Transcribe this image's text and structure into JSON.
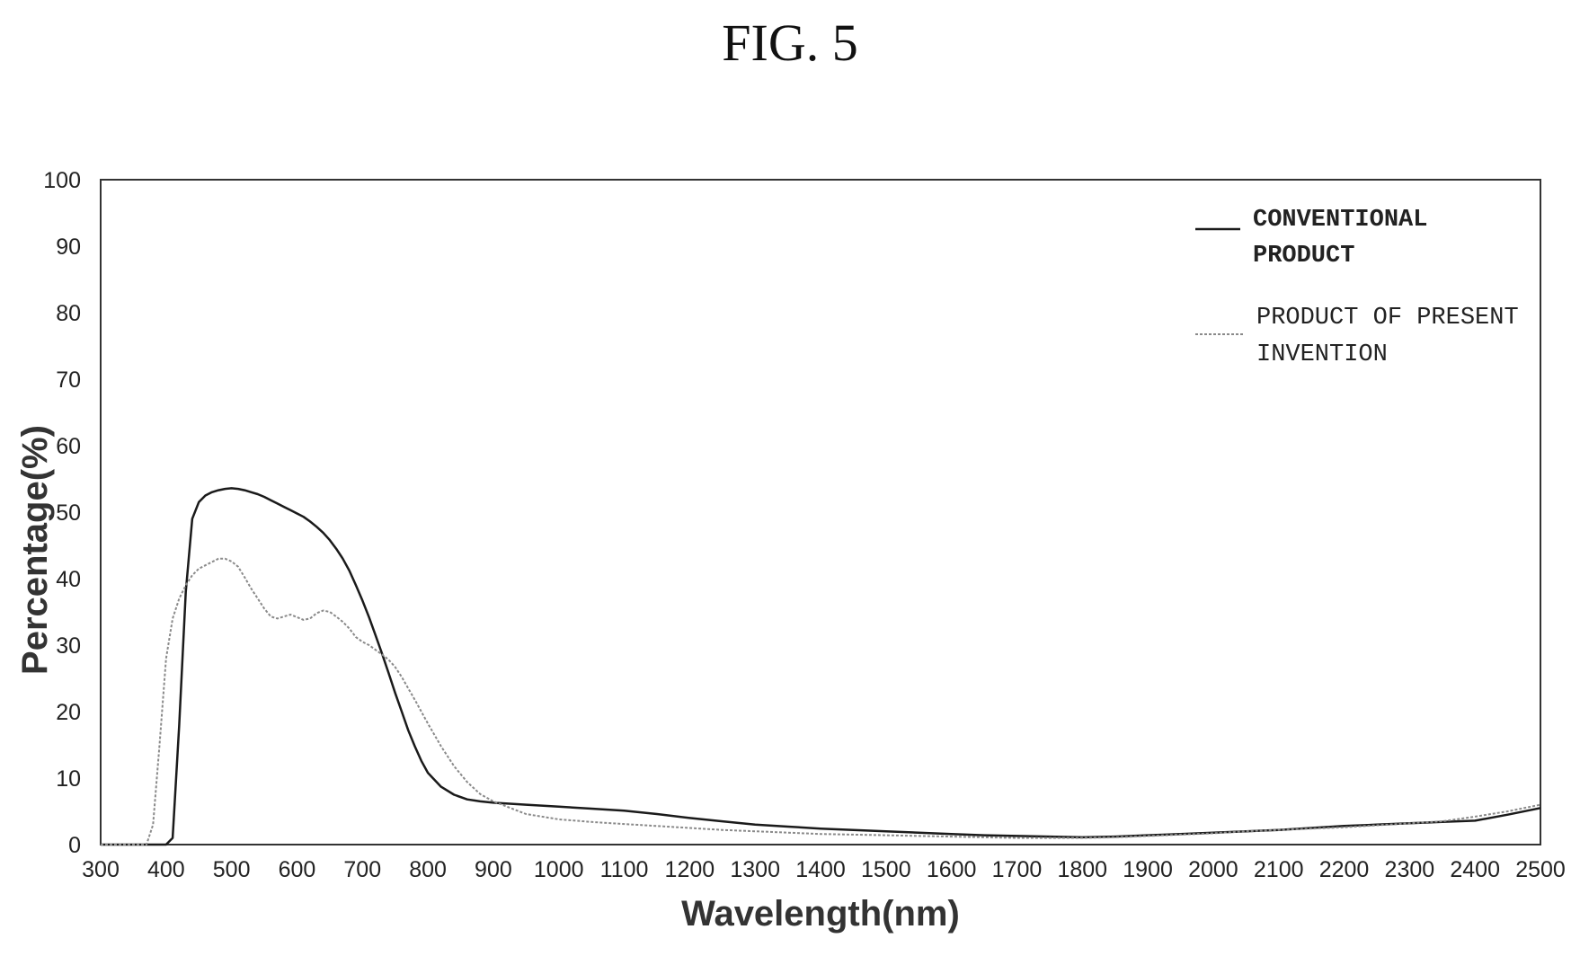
{
  "figure": {
    "title": "FIG. 5"
  },
  "chart_data": {
    "type": "line",
    "xlabel": "Wavelength(nm)",
    "ylabel": "Percentage(%)",
    "xlim": [
      300,
      2500
    ],
    "ylim": [
      0,
      100
    ],
    "xticks": [
      300,
      400,
      500,
      600,
      700,
      800,
      900,
      1000,
      1100,
      1200,
      1300,
      1400,
      1500,
      1600,
      1700,
      1800,
      1900,
      2000,
      2100,
      2200,
      2300,
      2400,
      2500
    ],
    "yticks": [
      0,
      10,
      20,
      30,
      40,
      50,
      60,
      70,
      80,
      90,
      100
    ],
    "grid": false,
    "legend_position": "top-right",
    "legend": [
      {
        "lines": [
          "CONVENTIONAL",
          "PRODUCT"
        ]
      },
      {
        "lines": [
          "PRODUCT OF PRESENT",
          "INVENTION"
        ]
      }
    ],
    "series": [
      {
        "name": "CONVENTIONAL PRODUCT",
        "color": "#1a1a1a",
        "x": [
          300,
          400,
          410,
          420,
          430,
          440,
          450,
          460,
          470,
          480,
          490,
          500,
          510,
          520,
          530,
          540,
          550,
          560,
          570,
          580,
          590,
          600,
          610,
          620,
          630,
          640,
          650,
          660,
          670,
          680,
          690,
          700,
          710,
          720,
          730,
          740,
          750,
          760,
          770,
          780,
          790,
          800,
          820,
          840,
          860,
          880,
          900,
          950,
          1000,
          1050,
          1100,
          1150,
          1200,
          1250,
          1300,
          1350,
          1400,
          1450,
          1500,
          1550,
          1600,
          1650,
          1700,
          1750,
          1800,
          1850,
          1900,
          1950,
          2000,
          2050,
          2100,
          2150,
          2200,
          2250,
          2300,
          2350,
          2400,
          2450,
          2500
        ],
        "y": [
          0,
          0,
          1,
          18,
          38,
          49,
          51.5,
          52.5,
          53,
          53.3,
          53.5,
          53.6,
          53.5,
          53.3,
          53,
          52.7,
          52.3,
          51.8,
          51.3,
          50.8,
          50.3,
          49.8,
          49.3,
          48.6,
          47.8,
          46.9,
          45.8,
          44.5,
          43,
          41.2,
          39,
          36.7,
          34.2,
          31.5,
          28.7,
          25.8,
          22.8,
          20,
          17.2,
          14.8,
          12.6,
          10.8,
          8.7,
          7.5,
          6.8,
          6.5,
          6.3,
          6,
          5.7,
          5.4,
          5.1,
          4.6,
          4,
          3.5,
          3,
          2.7,
          2.4,
          2.2,
          2,
          1.8,
          1.6,
          1.4,
          1.3,
          1.2,
          1.1,
          1.2,
          1.4,
          1.6,
          1.8,
          2,
          2.2,
          2.5,
          2.8,
          3,
          3.2,
          3.4,
          3.6,
          4.5,
          5.5
        ]
      },
      {
        "name": "PRODUCT OF PRESENT INVENTION",
        "color": "#8a8a8a",
        "x": [
          300,
          370,
          380,
          390,
          400,
          410,
          420,
          430,
          440,
          450,
          460,
          470,
          480,
          490,
          500,
          510,
          520,
          530,
          540,
          550,
          560,
          570,
          580,
          590,
          600,
          610,
          620,
          630,
          640,
          650,
          660,
          670,
          680,
          690,
          700,
          710,
          720,
          730,
          740,
          750,
          760,
          770,
          780,
          790,
          800,
          820,
          840,
          860,
          880,
          900,
          950,
          1000,
          1050,
          1100,
          1150,
          1200,
          1250,
          1300,
          1350,
          1400,
          1450,
          1500,
          1550,
          1600,
          1650,
          1700,
          1750,
          1800,
          1850,
          1900,
          1950,
          2000,
          2050,
          2100,
          2150,
          2200,
          2250,
          2300,
          2350,
          2400,
          2450,
          2500
        ],
        "y": [
          0,
          0,
          3,
          15,
          28,
          34,
          37,
          39,
          40.5,
          41.5,
          42,
          42.5,
          43,
          43,
          42.6,
          41.8,
          40.2,
          38.5,
          37,
          35.5,
          34.3,
          34,
          34.3,
          34.6,
          34.2,
          33.8,
          34,
          34.8,
          35.2,
          35,
          34.3,
          33.5,
          32.5,
          31.2,
          30.5,
          30,
          29.3,
          28.6,
          27.8,
          26.7,
          25.2,
          23.5,
          21.8,
          20,
          18.2,
          14.8,
          11.8,
          9.4,
          7.6,
          6.5,
          4.6,
          3.8,
          3.4,
          3.1,
          2.8,
          2.5,
          2.2,
          2,
          1.8,
          1.6,
          1.5,
          1.4,
          1.3,
          1.2,
          1.1,
          1,
          1,
          1,
          1.1,
          1.3,
          1.5,
          1.7,
          2,
          2.2,
          2.4,
          2.6,
          2.9,
          3.2,
          3.5,
          4.2,
          5,
          6
        ]
      }
    ]
  }
}
